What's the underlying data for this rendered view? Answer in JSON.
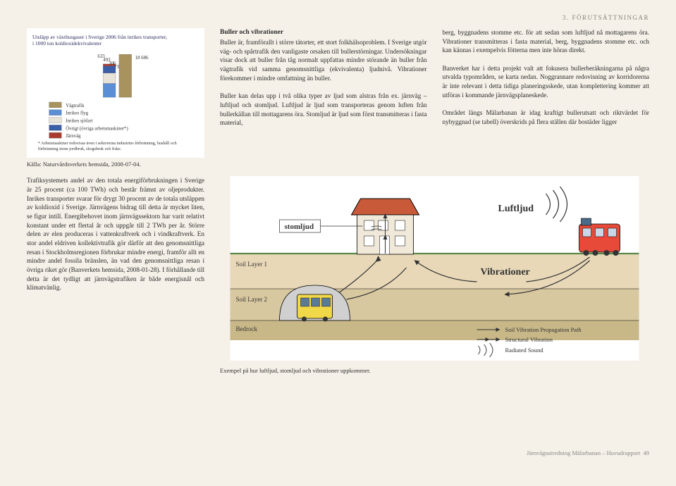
{
  "header": {
    "section": "3. FÖRUTSÄTTNINGAR"
  },
  "chart": {
    "title_line1": "Utsläpp av växthusgaser i Sverige 2006 från inrikes transporter,",
    "title_line2": "i 1000 ton koldioxidekvivalenter",
    "bars": [
      {
        "label": "633",
        "value": 633,
        "color": "#5a8fd6"
      },
      {
        "label": "493",
        "value": 493,
        "color": "#e8e3d8"
      },
      {
        "label": "306",
        "value": 306,
        "color": "#3a5fa8"
      },
      {
        "label": "73",
        "value": 73,
        "color": "#a83a2e"
      }
    ],
    "big_bar": {
      "label": "18 686",
      "value": 18686,
      "color": "#a8925e"
    },
    "legend": [
      {
        "label": "Vägtrafik",
        "color": "#a8925e"
      },
      {
        "label": "Inrikes flyg",
        "color": "#5a8fd6"
      },
      {
        "label": "Inrikes sjöfart",
        "color": "#e8e3d8"
      },
      {
        "label": "Övrigt (övriga arbetsmaskiner*)",
        "color": "#3a5fa8"
      },
      {
        "label": "Järnväg",
        "color": "#a83a2e"
      }
    ],
    "footnote": "* Arbetsmaskiner redovisas även i sektorerna industrins förbränning, hushåll och förbränning inom jordbruk, skogsbruk och fiske.",
    "caption": "Källa: Naturvårdsverkets hemsida, 2008-07-04."
  },
  "col1": {
    "heading": "Buller och vibrationer",
    "p1": "Buller är, framförallt i större tätorter, ett stort folkhälsoproblem. I Sverige utgör väg- och spårtrafik den vanligaste orsaken till bullerstörningar. Undersökningar visar dock att buller från tåg normalt uppfattas mindre störande än buller från vägtrafik vid samma genomsnittliga (ekvivalenta) ljudnivå. Vibrationer förekommer i mindre omfattning än buller.",
    "p2": "Buller kan delas upp i två olika typer av ljud som alstras från ex. järnväg – luftljud och stomljud. Luftljud är ljud som transporteras genom luften från bullerkällan till mottagarens öra. Stomljud är ljud som först transmitteras i fasta material,"
  },
  "col2": {
    "p1": "berg, byggnadens stomme etc. för att sedan som luftljud nå mottagarens öra. Vibrationer transmitteras i fasta material, berg, byggnadens stomme etc. och kan kännas i exempelvis fötterna men inte höras direkt.",
    "p2": "Banverket har i detta projekt valt att fokusera bullerberäkningarna på några utvalda typområden, se karta nedan. Noggrannare redovisning av korridorerna är inte relevant i detta tidiga planeringsskede, utan komplettering kommer att utföras i kommande järnvägsplaneskede.",
    "p3": "Området längs Mälarbanan är idag kraftigt bullerutsatt och riktvärdet för nybyggnad (se tabell) överskrids på flera ställen där bostäder ligger"
  },
  "bottom_text": {
    "p": "Trafiksystemets andel av den totala energiförbrukningen i Sverige är 25 procent (ca 100 TWh) och består främst av oljeprodukter. Inrikes transporter svarar för drygt 30 procent av de totala utsläppen av koldioxid i Sverige. Järnvägens bidrag till detta är mycket liten, se figur intill. Energibehovet inom järnvägssektorn har varit relativt konstant under ett flertal år och uppgår till 2 TWh per år. Större delen av elen produceras i vattenkraftverk och i vindkraftverk. En stor andel eldriven kollektivtrafik gör därför att den genomsnittliga resan i Stockholmsregionen förbrukar mindre energi, framför allt en mindre andel fossila bränslen, än vad den genomsnittliga resan i övriga riket gör (Banverkets hemsida, 2008-01-28). I förhållande till detta är det tydligt att järnvägstrafiken är både energisnål och klimatvänlig."
  },
  "diagram": {
    "labels": {
      "stomljud": "stomljud",
      "luftljud": "Luftljud",
      "vibrationer": "Vibrationer",
      "soil1": "Soil Layer 1",
      "soil2": "Soil Layer 2",
      "bedrock": "Bedrock",
      "legend1": "Soil Vibration Propagation Path",
      "legend2": "Structural Vibration",
      "legend3": "Radiated Sound"
    },
    "colors": {
      "sky": "#ffffff",
      "soil1": "#e8d8b8",
      "soil2": "#d8c8a0",
      "bedrock": "#c8b888",
      "house_roof": "#c85a3a",
      "house_wall": "#f0e8d8",
      "tunnel": "#b0b0b0",
      "outline": "#000000",
      "grass": "#5a8a4a"
    },
    "caption": "Exempel på hur luftljud, stomljud och vibrationer uppkommer."
  },
  "footer": {
    "text": "Järnvägsutredning Mälarbanan – Huvudrapport",
    "page": "49"
  }
}
